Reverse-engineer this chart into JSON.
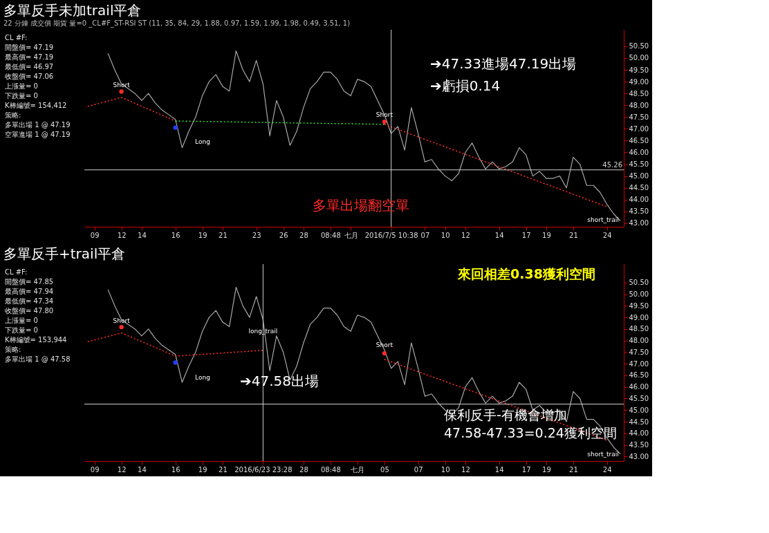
{
  "chart_data": [
    {
      "type": "line",
      "title": "多單反手未加trail平倉",
      "subtitle": "22 分鐘 成交價 期貨 量=0 _CL#F_ST-RSI ST (11, 35, 84, 29, 1.88, 0.97, 1.59, 1.99, 1.98, 0.49, 3.51, 1)",
      "grid": false,
      "categories": [
        null,
        "09",
        null,
        null,
        null,
        "12",
        null,
        null,
        "14",
        null,
        null,
        null,
        null,
        "16",
        null,
        null,
        null,
        "19",
        null,
        null,
        "21",
        null,
        null,
        null,
        null,
        "23",
        null,
        null,
        null,
        "26",
        null,
        null,
        "28",
        null,
        null,
        null,
        "08:48",
        null,
        null,
        "七月",
        null,
        null,
        null,
        null,
        null,
        "2016/7/5 10:38",
        null,
        null,
        null,
        null,
        "07",
        null,
        null,
        "10",
        null,
        null,
        "12",
        null,
        null,
        null,
        null,
        "14",
        null,
        null,
        null,
        "17",
        null,
        null,
        "19",
        null,
        null,
        null,
        "21",
        null,
        null,
        null,
        null,
        "24",
        null,
        null
      ],
      "ylim": [
        42.85,
        51.2
      ],
      "yticks": [
        {
          "value": 43,
          "label": "43.00"
        },
        {
          "value": 43.5,
          "label": "43.50"
        },
        {
          "value": 44,
          "label": "44.00"
        },
        {
          "value": 44.5,
          "label": "44.50"
        },
        {
          "value": 45,
          "label": "45.00"
        },
        {
          "value": 45.5,
          "label": "45.50"
        },
        {
          "value": 46,
          "label": "46.00"
        },
        {
          "value": 46.5,
          "label": "46.50"
        },
        {
          "value": 47,
          "label": "47.00"
        },
        {
          "value": 47.5,
          "label": "47.50"
        },
        {
          "value": 48,
          "label": "48.00"
        },
        {
          "value": 48.5,
          "label": "48.50"
        },
        {
          "value": 49,
          "label": "49.00"
        },
        {
          "value": 49.5,
          "label": "49.50"
        },
        {
          "value": 50,
          "label": "50.00"
        },
        {
          "value": 50.5,
          "label": "50.50"
        }
      ],
      "series": [
        {
          "color": "#a8a8a8",
          "line_style": "solid",
          "values": [
            null,
            null,
            null,
            50.2,
            49.5,
            48.9,
            48.7,
            48.5,
            48.2,
            48.5,
            48.1,
            47.8,
            47.6,
            47.4,
            46.2,
            46.9,
            47.5,
            48.4,
            49.0,
            49.3,
            48.8,
            48.6,
            50.3,
            49.5,
            49.0,
            49.9,
            48.9,
            46.7,
            48.2,
            47.5,
            46.3,
            46.9,
            47.9,
            48.7,
            49.0,
            49.4,
            49.4,
            49.1,
            48.6,
            48.4,
            49.1,
            49.0,
            48.8,
            48.2,
            47.6,
            46.8,
            47.1,
            46.1,
            47.9,
            46.8,
            45.6,
            45.7,
            45.3,
            45.0,
            44.8,
            45.1,
            46.0,
            46.4,
            45.8,
            45.3,
            45.6,
            45.3,
            45.4,
            45.6,
            46.2,
            45.9,
            45.0,
            45.2,
            44.9,
            44.9,
            45.0,
            44.5,
            45.8,
            45.5,
            44.6,
            44.6,
            44.3,
            43.8,
            43.4,
            43.1
          ]
        },
        {
          "color": "#ff2a2a",
          "line_style": "dotted",
          "values": [
            47.95,
            null,
            null,
            null,
            null,
            48.33,
            null,
            null,
            null,
            null,
            null,
            null,
            null,
            47.33,
            null,
            null,
            null,
            null,
            null,
            null,
            null,
            null,
            null,
            null,
            null,
            null,
            null,
            null,
            null,
            null,
            null,
            null,
            null,
            null,
            null,
            null,
            null,
            null,
            null,
            null,
            null,
            null,
            null,
            null,
            null,
            null,
            null,
            null,
            null,
            null,
            null,
            null,
            null,
            null,
            null,
            null,
            null,
            null,
            null,
            null,
            null,
            null,
            null,
            null,
            null,
            null,
            null,
            null,
            null,
            null,
            null,
            null,
            null,
            null,
            null,
            null,
            null,
            null,
            null,
            null
          ]
        },
        {
          "color": "#ff2a2a",
          "line_style": "dotted",
          "values": [
            null,
            null,
            null,
            null,
            null,
            null,
            null,
            null,
            null,
            null,
            null,
            null,
            null,
            null,
            null,
            null,
            null,
            null,
            null,
            null,
            null,
            null,
            null,
            null,
            null,
            null,
            null,
            null,
            null,
            null,
            null,
            null,
            null,
            null,
            null,
            null,
            null,
            null,
            null,
            null,
            null,
            null,
            null,
            null,
            47.19,
            null,
            null,
            null,
            null,
            null,
            null,
            null,
            null,
            null,
            null,
            null,
            null,
            null,
            null,
            null,
            null,
            null,
            null,
            null,
            null,
            null,
            null,
            null,
            null,
            null,
            null,
            null,
            null,
            null,
            null,
            null,
            null,
            43.7,
            null,
            null
          ]
        },
        {
          "color": "#33dd33",
          "line_style": "dotted",
          "values": [
            null,
            null,
            null,
            null,
            null,
            null,
            null,
            null,
            null,
            null,
            null,
            null,
            null,
            47.33,
            null,
            null,
            null,
            null,
            null,
            null,
            null,
            null,
            null,
            null,
            null,
            null,
            null,
            null,
            null,
            null,
            null,
            null,
            null,
            null,
            null,
            null,
            null,
            null,
            null,
            null,
            null,
            null,
            null,
            null,
            47.19,
            null,
            null,
            null,
            null,
            null,
            null,
            null,
            null,
            null,
            null,
            null,
            null,
            null,
            null,
            null,
            null,
            null,
            null,
            null,
            null,
            null,
            null,
            null,
            null,
            null,
            null,
            null,
            null,
            null,
            null,
            null,
            null,
            null,
            null,
            null
          ]
        },
        {
          "type": "scatter",
          "color": "#ff2a2a",
          "values": [
            null,
            null,
            null,
            null,
            null,
            48.58,
            null,
            null,
            null,
            null,
            null,
            null,
            null,
            null,
            null,
            null,
            null,
            null,
            null,
            null,
            null,
            null,
            null,
            null,
            null,
            null,
            null,
            null,
            null,
            null,
            null,
            null,
            null,
            null,
            null,
            null,
            null,
            null,
            null,
            null,
            null,
            null,
            null,
            null,
            47.3,
            null,
            null,
            null,
            null,
            null,
            null,
            null,
            null,
            null,
            null,
            null,
            null,
            null,
            null,
            null,
            null,
            null,
            null,
            null,
            null,
            null,
            null,
            null,
            null,
            null,
            null,
            null,
            null,
            null,
            null,
            null,
            null,
            null,
            null,
            null
          ]
        },
        {
          "type": "scatter",
          "color": "#2040ff",
          "values": [
            null,
            null,
            null,
            null,
            null,
            null,
            null,
            null,
            null,
            null,
            null,
            null,
            null,
            47.05,
            null,
            null,
            null,
            null,
            null,
            null,
            null,
            null,
            null,
            null,
            null,
            null,
            null,
            null,
            null,
            null,
            null,
            null,
            null,
            null,
            null,
            null,
            null,
            null,
            null,
            null,
            null,
            null,
            null,
            null,
            null,
            null,
            null,
            null,
            null,
            null,
            null,
            null,
            null,
            null,
            null,
            null,
            null,
            null,
            null,
            null,
            null,
            null,
            null,
            null,
            null,
            null,
            null,
            null,
            null,
            null,
            null,
            null,
            null,
            null,
            null,
            null,
            null,
            null,
            null,
            null
          ]
        }
      ],
      "ref_lines": [
        {
          "axis": "y",
          "value": 45.26,
          "label": "45.26",
          "color": "#d0d0d0"
        },
        {
          "axis": "x",
          "value": "2016/7/5 10:38",
          "color": "#d0d0d0"
        }
      ],
      "annotations": [
        "CL #F:",
        "開盤價= 47.19",
        "最高價= 47.19",
        "最低價= 46.97",
        "收盤價= 47.06",
        "上漲量= 0",
        "下跌量= 0",
        "K棒編號= 154,412",
        "策略:",
        "多單出場 1 @ 47.19",
        "空單進場 1 @ 47.19",
        "➔47.33進場47.19出場",
        "➔虧損0.14",
        "多單出場翻空單",
        "Long",
        "short_trail",
        {
          "text": "Short",
          "y": 48.85
        },
        {
          "text": "Short",
          "y": 47.6
        }
      ]
    },
    {
      "type": "line",
      "title": "多單反手+trail平倉",
      "grid": false,
      "categories": [
        null,
        "09",
        null,
        null,
        null,
        "12",
        null,
        null,
        "14",
        null,
        null,
        null,
        null,
        "16",
        null,
        null,
        null,
        "19",
        null,
        null,
        "21",
        null,
        null,
        null,
        null,
        null,
        "2016/6/23 23:28",
        null,
        null,
        null,
        null,
        null,
        "28",
        null,
        null,
        null,
        "08:48",
        null,
        null,
        null,
        "七月",
        null,
        null,
        null,
        "05",
        null,
        null,
        null,
        null,
        "07",
        null,
        null,
        null,
        "10",
        null,
        null,
        "12",
        null,
        null,
        null,
        null,
        "14",
        null,
        null,
        null,
        "17",
        null,
        null,
        "19",
        null,
        null,
        null,
        "21",
        null,
        null,
        null,
        null,
        "24",
        null,
        null
      ],
      "ylim": [
        42.8,
        51.3
      ],
      "yticks": [
        {
          "value": 43,
          "label": "43.00"
        },
        {
          "value": 43.5,
          "label": "43.50"
        },
        {
          "value": 44,
          "label": "44.00"
        },
        {
          "value": 44.5,
          "label": "44.50"
        },
        {
          "value": 45,
          "label": "45.00"
        },
        {
          "value": 45.5,
          "label": "45.50"
        },
        {
          "value": 46,
          "label": "46.00"
        },
        {
          "value": 46.5,
          "label": "46.50"
        },
        {
          "value": 47,
          "label": "47.00"
        },
        {
          "value": 47.5,
          "label": "47.50"
        },
        {
          "value": 48,
          "label": "48.00"
        },
        {
          "value": 48.5,
          "label": "48.50"
        },
        {
          "value": 49,
          "label": "49.00"
        },
        {
          "value": 49.5,
          "label": "49.50"
        },
        {
          "value": 50,
          "label": "50.00"
        },
        {
          "value": 50.5,
          "label": "50.50"
        }
      ],
      "series": [
        {
          "color": "#a8a8a8",
          "line_style": "solid",
          "values": [
            null,
            null,
            null,
            50.2,
            49.5,
            48.9,
            48.7,
            48.5,
            48.2,
            48.5,
            48.1,
            47.8,
            47.6,
            47.4,
            46.2,
            46.9,
            47.5,
            48.4,
            49.0,
            49.3,
            48.8,
            48.6,
            50.3,
            49.5,
            49.0,
            49.9,
            48.9,
            46.7,
            48.2,
            47.5,
            46.3,
            46.9,
            47.9,
            48.7,
            49.0,
            49.4,
            49.4,
            49.1,
            48.6,
            48.4,
            49.1,
            49.0,
            48.8,
            48.2,
            47.6,
            46.8,
            47.1,
            46.1,
            47.9,
            46.8,
            45.6,
            45.7,
            45.3,
            45.0,
            44.8,
            45.1,
            46.0,
            46.4,
            45.8,
            45.3,
            45.6,
            45.3,
            45.4,
            45.6,
            46.2,
            45.9,
            45.0,
            45.2,
            44.9,
            44.9,
            45.0,
            44.5,
            45.8,
            45.5,
            44.6,
            44.6,
            44.3,
            43.8,
            43.4,
            43.1
          ]
        },
        {
          "color": "#ff2a2a",
          "line_style": "dotted",
          "values": [
            47.95,
            null,
            null,
            null,
            null,
            48.33,
            null,
            null,
            null,
            null,
            null,
            null,
            null,
            47.33,
            null,
            null,
            null,
            null,
            null,
            null,
            null,
            null,
            null,
            null,
            null,
            null,
            47.58,
            null,
            null,
            null,
            null,
            null,
            null,
            null,
            null,
            null,
            null,
            null,
            null,
            null,
            null,
            null,
            null,
            null,
            null,
            null,
            null,
            null,
            null,
            null,
            null,
            null,
            null,
            null,
            null,
            null,
            null,
            null,
            null,
            null,
            null,
            null,
            null,
            null,
            null,
            null,
            null,
            null,
            null,
            null,
            null,
            null,
            null,
            null,
            null,
            null,
            null,
            null,
            null,
            null
          ]
        },
        {
          "color": "#ff2a2a",
          "line_style": "dotted",
          "values": [
            null,
            null,
            null,
            null,
            null,
            null,
            null,
            null,
            null,
            null,
            null,
            null,
            null,
            null,
            null,
            null,
            null,
            null,
            null,
            null,
            null,
            null,
            null,
            null,
            null,
            null,
            null,
            null,
            null,
            null,
            null,
            null,
            null,
            null,
            null,
            null,
            null,
            null,
            null,
            null,
            null,
            null,
            null,
            null,
            47.19,
            null,
            null,
            null,
            null,
            null,
            null,
            null,
            null,
            null,
            null,
            null,
            null,
            null,
            null,
            null,
            null,
            null,
            null,
            null,
            null,
            null,
            null,
            null,
            null,
            null,
            null,
            null,
            null,
            null,
            null,
            null,
            null,
            43.7,
            null,
            null
          ]
        },
        {
          "type": "scatter",
          "color": "#ff2a2a",
          "values": [
            null,
            null,
            null,
            null,
            null,
            48.58,
            null,
            null,
            null,
            null,
            null,
            null,
            null,
            null,
            null,
            null,
            null,
            null,
            null,
            null,
            null,
            null,
            null,
            null,
            null,
            null,
            null,
            null,
            null,
            null,
            null,
            null,
            null,
            null,
            null,
            null,
            null,
            null,
            null,
            null,
            null,
            null,
            null,
            null,
            47.45,
            null,
            null,
            null,
            null,
            null,
            null,
            null,
            null,
            null,
            null,
            null,
            null,
            null,
            null,
            null,
            null,
            null,
            null,
            null,
            null,
            null,
            null,
            null,
            null,
            null,
            null,
            null,
            null,
            null,
            null,
            null,
            null,
            null,
            null,
            null
          ]
        },
        {
          "type": "scatter",
          "color": "#2040ff",
          "values": [
            null,
            null,
            null,
            null,
            null,
            null,
            null,
            null,
            null,
            null,
            null,
            null,
            null,
            47.05,
            null,
            null,
            null,
            null,
            null,
            null,
            null,
            null,
            null,
            null,
            null,
            null,
            null,
            null,
            null,
            null,
            null,
            null,
            null,
            null,
            null,
            null,
            null,
            null,
            null,
            null,
            null,
            null,
            null,
            null,
            null,
            null,
            null,
            null,
            null,
            null,
            null,
            null,
            null,
            null,
            null,
            null,
            null,
            null,
            null,
            null,
            null,
            null,
            null,
            null,
            null,
            null,
            null,
            null,
            null,
            null,
            null,
            null,
            null,
            null,
            null,
            null,
            null,
            null,
            null,
            null
          ]
        }
      ],
      "ref_lines": [
        {
          "axis": "y",
          "value": 45.26,
          "color": "#d0d0d0"
        },
        {
          "axis": "x",
          "value": "2016/6/23 23:28",
          "color": "#d0d0d0"
        }
      ],
      "annotations": [
        "CL #F:",
        "開盤價= 47.85",
        "最高價= 47.94",
        "最低價= 47.34",
        "收盤價= 47.80",
        "上漲量= 0",
        "下跌量= 0",
        "K棒編號= 153,944",
        "策略:",
        "多單出場 1 @ 47.58",
        "來回相差0.38獲利空間",
        "➔47.58出場",
        "保利反手-有機會增加",
        "47.58-47.33=0.24獲利空間",
        "Long",
        "short_trail",
        {
          "text": "Short",
          "y": 48.85
        },
        {
          "text": "long_trail",
          "y": 48.4
        },
        {
          "text": "Short",
          "y": 47.8
        }
      ]
    }
  ]
}
